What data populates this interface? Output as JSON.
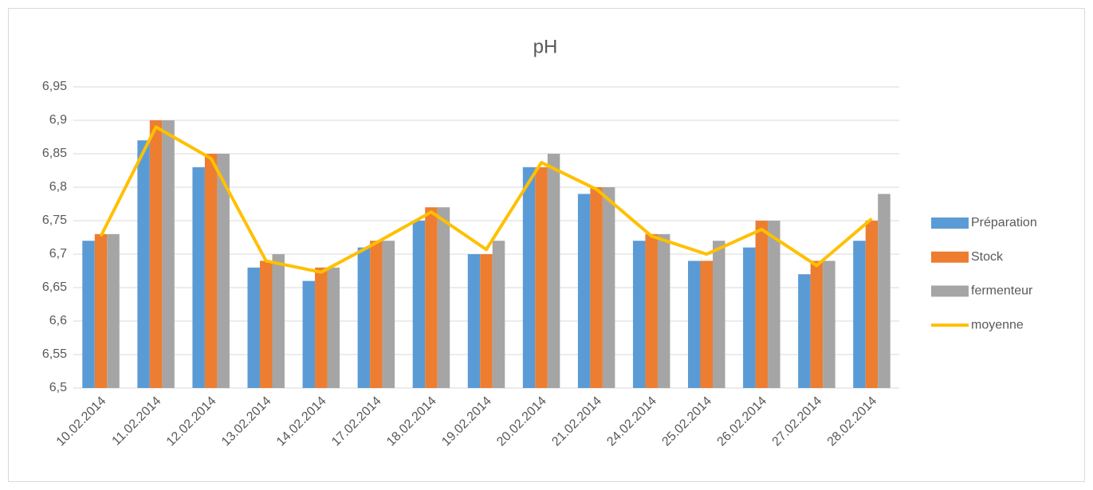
{
  "chart_data": {
    "type": "bar",
    "title": "pH",
    "categories": [
      "10.02.2014",
      "11.02.2014",
      "12.02.2014",
      "13.02.2014",
      "14.02.2014",
      "17.02.2014",
      "18.02.2014",
      "19.02.2014",
      "20.02.2014",
      "21.02.2014",
      "24.02.2014",
      "25.02.2014",
      "26.02.2014",
      "27.02.2014",
      "28.02.2014"
    ],
    "series": [
      {
        "name": "Préparation",
        "type": "bar",
        "color": "#5b9bd5",
        "values": [
          6.72,
          6.87,
          6.83,
          6.68,
          6.66,
          6.71,
          6.75,
          6.7,
          6.83,
          6.79,
          6.72,
          6.69,
          6.71,
          6.67,
          6.72
        ]
      },
      {
        "name": "Stock",
        "type": "bar",
        "color": "#ed7d31",
        "values": [
          6.73,
          6.9,
          6.85,
          6.69,
          6.68,
          6.72,
          6.77,
          6.7,
          6.83,
          6.8,
          6.73,
          6.69,
          6.75,
          6.69,
          6.75
        ]
      },
      {
        "name": "fermenteur",
        "type": "bar",
        "color": "#a5a5a5",
        "values": [
          6.73,
          6.9,
          6.85,
          6.7,
          6.68,
          6.72,
          6.77,
          6.72,
          6.85,
          6.8,
          6.73,
          6.72,
          6.75,
          6.69,
          6.79
        ]
      },
      {
        "name": "moyenne",
        "type": "line",
        "color": "#ffc000",
        "values": [
          6.727,
          6.89,
          6.843,
          6.69,
          6.673,
          6.717,
          6.763,
          6.707,
          6.837,
          6.797,
          6.727,
          6.7,
          6.737,
          6.683,
          6.753
        ]
      }
    ],
    "ylim": [
      6.5,
      6.95
    ],
    "yticks": [
      {
        "value": 6.5,
        "label": "6,5"
      },
      {
        "value": 6.55,
        "label": "6,55"
      },
      {
        "value": 6.6,
        "label": "6,6"
      },
      {
        "value": 6.65,
        "label": "6,65"
      },
      {
        "value": 6.7,
        "label": "6,7"
      },
      {
        "value": 6.75,
        "label": "6,75"
      },
      {
        "value": 6.8,
        "label": "6,8"
      },
      {
        "value": 6.85,
        "label": "6,85"
      },
      {
        "value": 6.9,
        "label": "6,9"
      },
      {
        "value": 6.95,
        "label": "6,95"
      }
    ],
    "grid": true,
    "legend": "right"
  }
}
